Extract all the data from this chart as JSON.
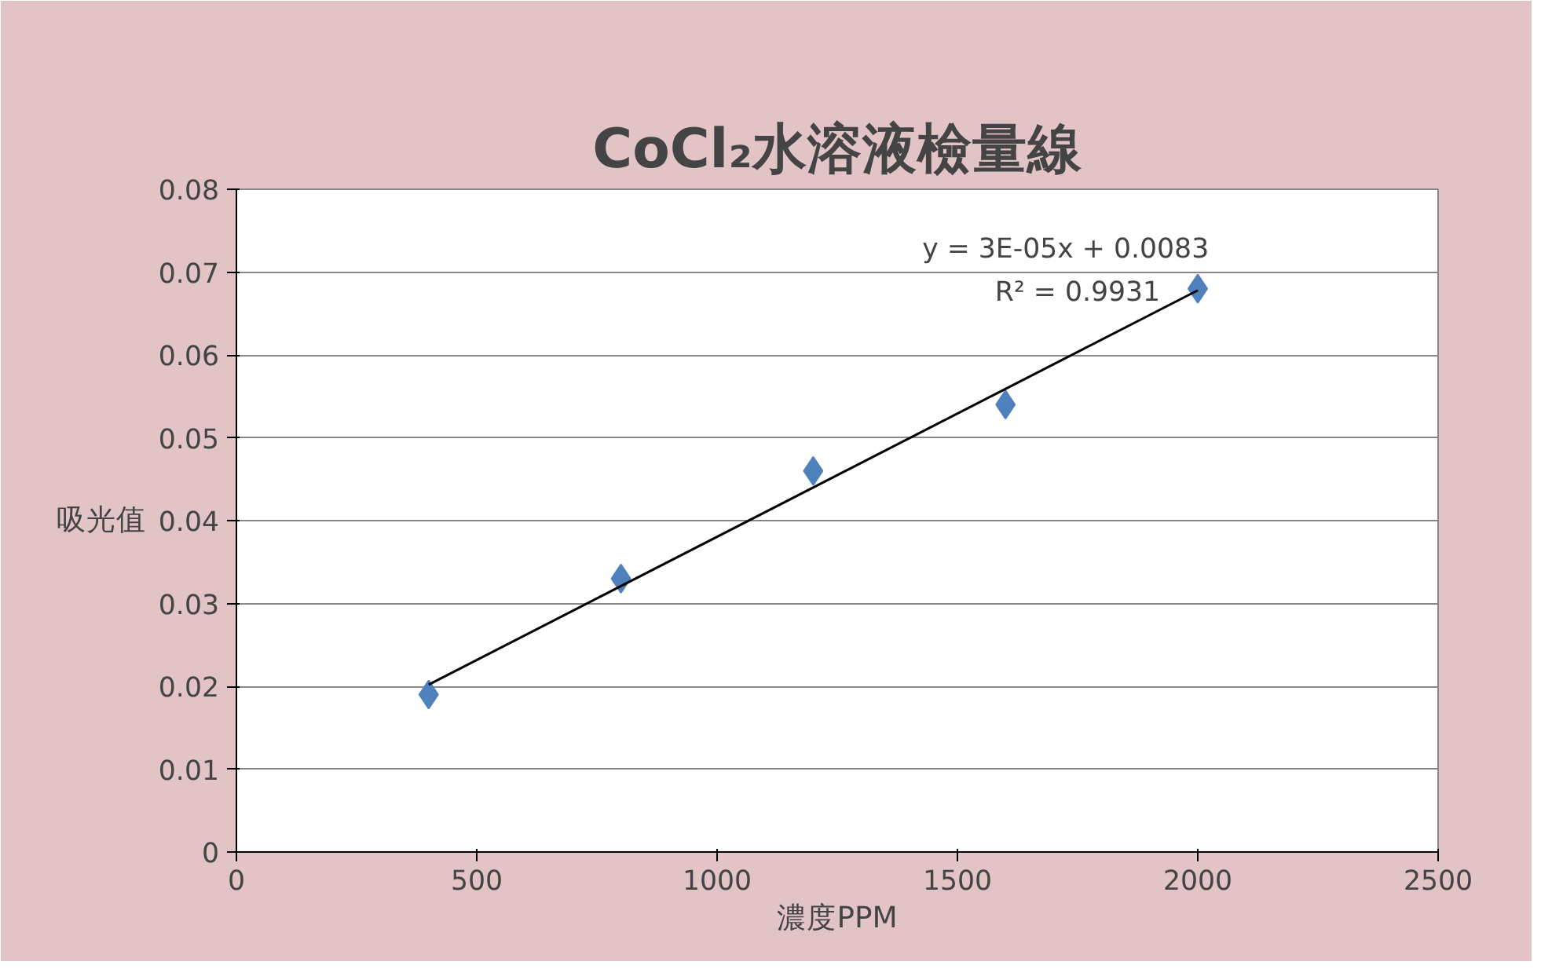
{
  "chart_data": {
    "type": "scatter",
    "title": "CoCl₂水溶液檢量線",
    "xlabel": "濃度PPM",
    "ylabel": "吸光值",
    "x": [
      400,
      800,
      1200,
      1600,
      2000
    ],
    "series": [
      {
        "color": "#4f81bd",
        "values": [
          0.019,
          0.033,
          0.046,
          0.054,
          0.068
        ],
        "marker": "diamond"
      },
      {
        "type": "line",
        "color": "#000000",
        "x": [
          400,
          2000
        ],
        "values": [
          0.0202,
          0.0678
        ],
        "marker": "none"
      }
    ],
    "annotations": [
      "y = 3E-05x + 0.0083",
      "R² = 0.9931"
    ],
    "xlim": [
      0,
      2500
    ],
    "xticks": [
      0,
      500,
      1000,
      1500,
      2000,
      2500
    ],
    "ylim": [
      0,
      0.08
    ],
    "yticks": [
      {
        "value": 0,
        "label": "0"
      },
      0.01,
      0.02,
      0.03,
      0.04,
      0.05,
      0.06,
      0.07,
      0.08
    ],
    "grid": "y"
  }
}
